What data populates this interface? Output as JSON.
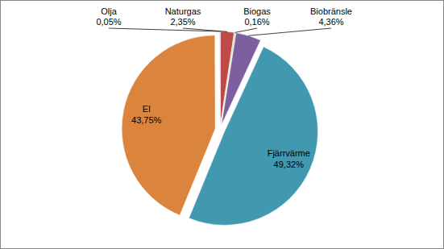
{
  "chart_data": {
    "type": "pie",
    "categories": [
      "Naturgas",
      "Biogas",
      "Biobränsle",
      "Fjärrvärme",
      "El",
      "Olja"
    ],
    "values": [
      2.35,
      0.16,
      4.36,
      49.32,
      43.75,
      0.05
    ],
    "value_labels": [
      "2,35%",
      "0,16%",
      "4,36%",
      "49,32%",
      "43,75%",
      "0,05%"
    ],
    "colors": [
      "#be4b48",
      "#98b954",
      "#7d5fa0",
      "#4198af",
      "#db843d",
      "#4a7ebb"
    ],
    "data_labels": true
  }
}
